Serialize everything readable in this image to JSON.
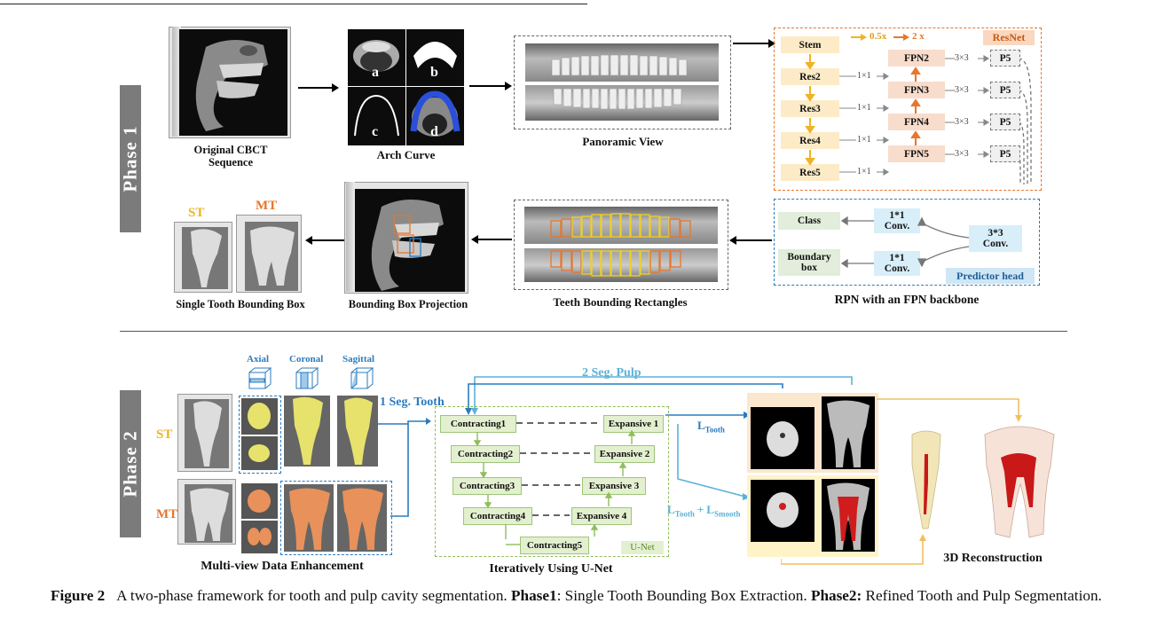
{
  "phase1": {
    "label": "Phase 1",
    "original_cbct": "Original CBCT Sequence",
    "arch_curve": "Arch Curve",
    "arch_panels": [
      "a",
      "b",
      "c",
      "d"
    ],
    "panoramic_view": "Panoramic View",
    "resnet": {
      "tag": "ResNet",
      "legend_down": "0.5x",
      "legend_up": "2 x",
      "backbone": [
        "Stem",
        "Res2",
        "Res3",
        "Res4",
        "Res5"
      ],
      "fpn": [
        "FPN2",
        "FPN3",
        "FPN4",
        "FPN5"
      ],
      "outputs": [
        "P5",
        "P5",
        "P5",
        "P5"
      ],
      "lateral_conv": "1×1",
      "output_conv": "3×3"
    },
    "predictor": {
      "tag": "Predictor head",
      "class": "Class",
      "box": "Boundary box",
      "conv11": "1*1 Conv.",
      "conv33": "3*3 Conv."
    },
    "rpn_caption": "RPN with an FPN backbone",
    "teeth_rects": "Teeth Bounding Rectangles",
    "bbox_projection": "Bounding Box Projection",
    "single_tooth": "Single Tooth Bounding Box",
    "st": "ST",
    "mt": "MT"
  },
  "phase2": {
    "label": "Phase 2",
    "views": [
      "Axial",
      "Coronal",
      "Sagittal"
    ],
    "st": "ST",
    "mt": "MT",
    "seg_tooth": "1 Seg. Tooth",
    "seg_pulp": "2 Seg. Pulp",
    "contracting": [
      "Contracting1",
      "Contracting2",
      "Contracting3",
      "Contracting4",
      "Contracting5"
    ],
    "expansive": [
      "Expansive 1",
      "Expansive 2",
      "Expansive 3",
      "Expansive 4"
    ],
    "unet_tag": "U-Net",
    "loss_tooth_main": "L",
    "loss_tooth_sub": "Tooth",
    "loss_combo_main1": "L",
    "loss_combo_sub1": "Tooth",
    "loss_combo_plus": "+",
    "loss_combo_main2": "L",
    "loss_combo_sub2": "Smooth",
    "multi_view": "Multi-view Data Enhancement",
    "iterative": "Iteratively Using U-Net",
    "recon": "3D Reconstruction"
  },
  "caption": {
    "fig": "Figure 2",
    "text1": "A two-phase framework for tooth and pulp cavity segmentation.",
    "p1": "Phase1",
    "text2": ": Single Tooth Bounding Box Extraction.",
    "p2": "Phase2:",
    "text3": " Refined Tooth and Pulp Segmentation."
  },
  "colors": {
    "orange": "#e8762b",
    "blue": "#2b7bbf",
    "gold": "#f0b323",
    "green": "#8fbd5a",
    "st_color": "#f0b323",
    "mt_color": "#e8762b",
    "phase_bg": "#7b7b7b"
  }
}
